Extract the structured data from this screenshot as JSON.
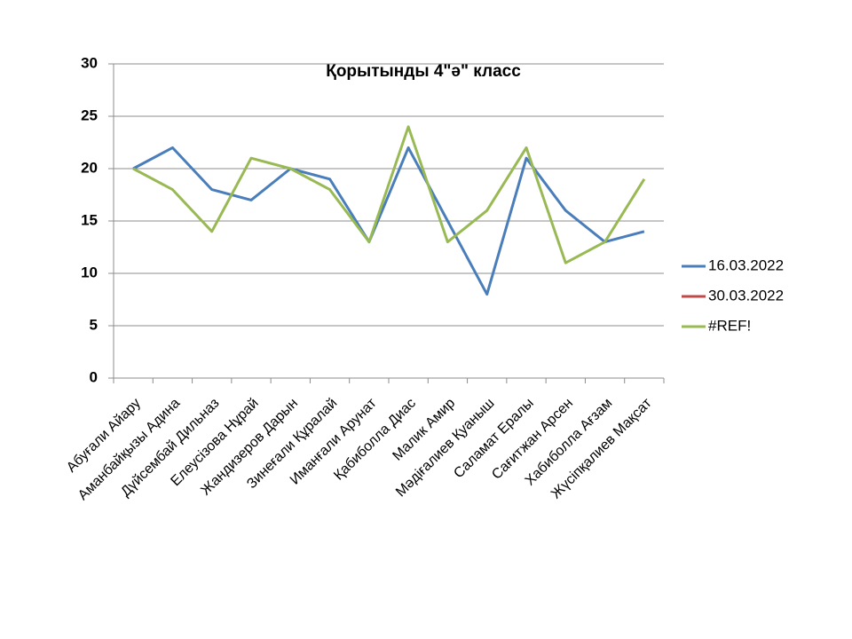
{
  "chart_data": {
    "type": "line",
    "title": "Қорытынды 4\"ә\" класс",
    "categories": [
      "Абуғали Айару",
      "Аманбайқызы Адина",
      "Дүйсембай Дильназ",
      "Елеусізова Нұрай",
      "Жандизеров Дарын",
      "Зинеғали Құралай",
      "Иманғали Арунат",
      "Қабиболла Диас",
      "Малик Амир",
      "Мәдіғалиев Қуаныш",
      "Саламат Ералы",
      "Сағитжан Арсен",
      "Хабиболла Ағзам",
      "Жүсіпқалиев Мақсат"
    ],
    "series": [
      {
        "name": "16.03.2022",
        "color": "#4a7ebb",
        "values": [
          20,
          22,
          18,
          17,
          20,
          19,
          13,
          22,
          15,
          8,
          21,
          16,
          13,
          14
        ]
      },
      {
        "name": "30.03.2022",
        "color": "#be4b48",
        "values": [
          null,
          null,
          null,
          null,
          null,
          null,
          null,
          null,
          null,
          null,
          null,
          null,
          null,
          null
        ]
      },
      {
        "name": "#REF!",
        "color": "#98b954",
        "values": [
          20,
          18,
          14,
          21,
          20,
          18,
          13,
          24,
          13,
          16,
          22,
          11,
          13,
          19
        ]
      }
    ],
    "ylim": [
      0,
      30
    ],
    "yticks": [
      0,
      5,
      10,
      15,
      20,
      25,
      30
    ],
    "grid": true,
    "legend": "right"
  }
}
